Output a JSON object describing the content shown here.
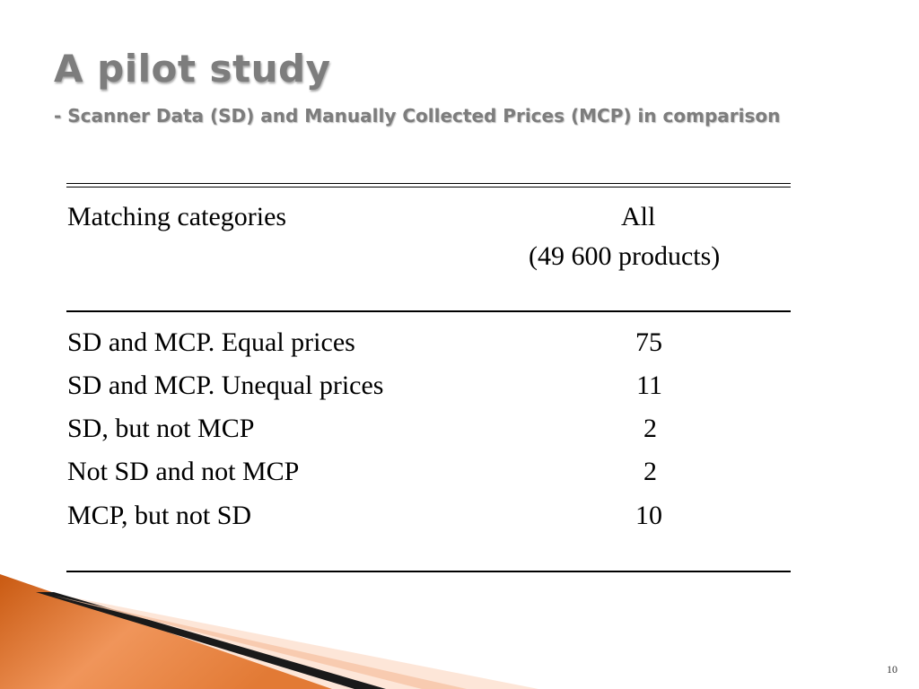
{
  "slide": {
    "title": "A pilot study",
    "subtitle": "- Scanner Data (SD) and Manually Collected Prices (MCP) in comparison",
    "page_number": "10"
  },
  "table": {
    "header_label": "Matching categories",
    "header_value_line1": "All",
    "header_value_line2": "(49 600 products)",
    "rows": [
      {
        "label": "SD and MCP. Equal prices",
        "value": "75"
      },
      {
        "label": "SD and MCP. Unequal prices",
        "value": "11"
      },
      {
        "label": "SD, but not MCP",
        "value": "2"
      },
      {
        "label": "Not SD and not MCP",
        "value": "2"
      },
      {
        "label": "MCP, but not SD",
        "value": "10"
      }
    ]
  },
  "colors": {
    "title": "#7d7d7d",
    "accent_orange": "#e8772e",
    "accent_light": "#fbd7c0",
    "stripe_dark": "#1a1a1a"
  }
}
